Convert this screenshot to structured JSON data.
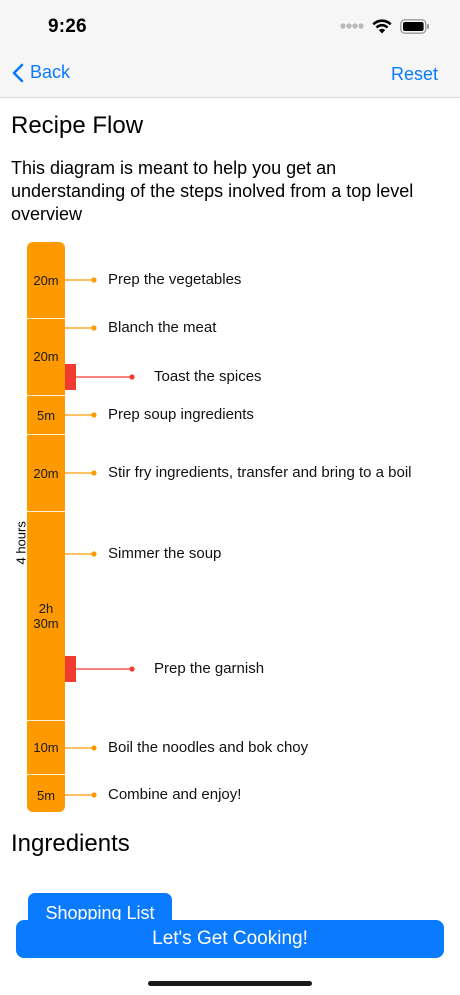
{
  "status_bar": {
    "time": "9:26"
  },
  "nav": {
    "back_label": "Back",
    "reset_label": "Reset"
  },
  "page": {
    "title": "Recipe Flow",
    "intro": "This diagram is meant to help you get an understanding of the steps inolved from a top level overview"
  },
  "flow": {
    "total_label": "4 hours",
    "durations": [
      "20m",
      "20m",
      "5m",
      "20m",
      "2h\n30m",
      "10m",
      "5m"
    ],
    "steps": [
      "Prep the vegetables",
      "Blanch the meat",
      "Toast the spices",
      "Prep soup ingredients",
      "Stir fry ingredients, transfer and bring to a boil",
      "Simmer the soup",
      "Prep the garnish",
      "Boil the noodles and bok choy",
      "Combine and enjoy!"
    ],
    "colors": {
      "bar": "#fe9a00",
      "marker": "#f23b30"
    }
  },
  "ingredients": {
    "title": "Ingredients"
  },
  "buttons": {
    "shopping_list": "Shopping List",
    "start_cooking": "Let's Get Cooking!"
  },
  "accent": "#0a7aff"
}
